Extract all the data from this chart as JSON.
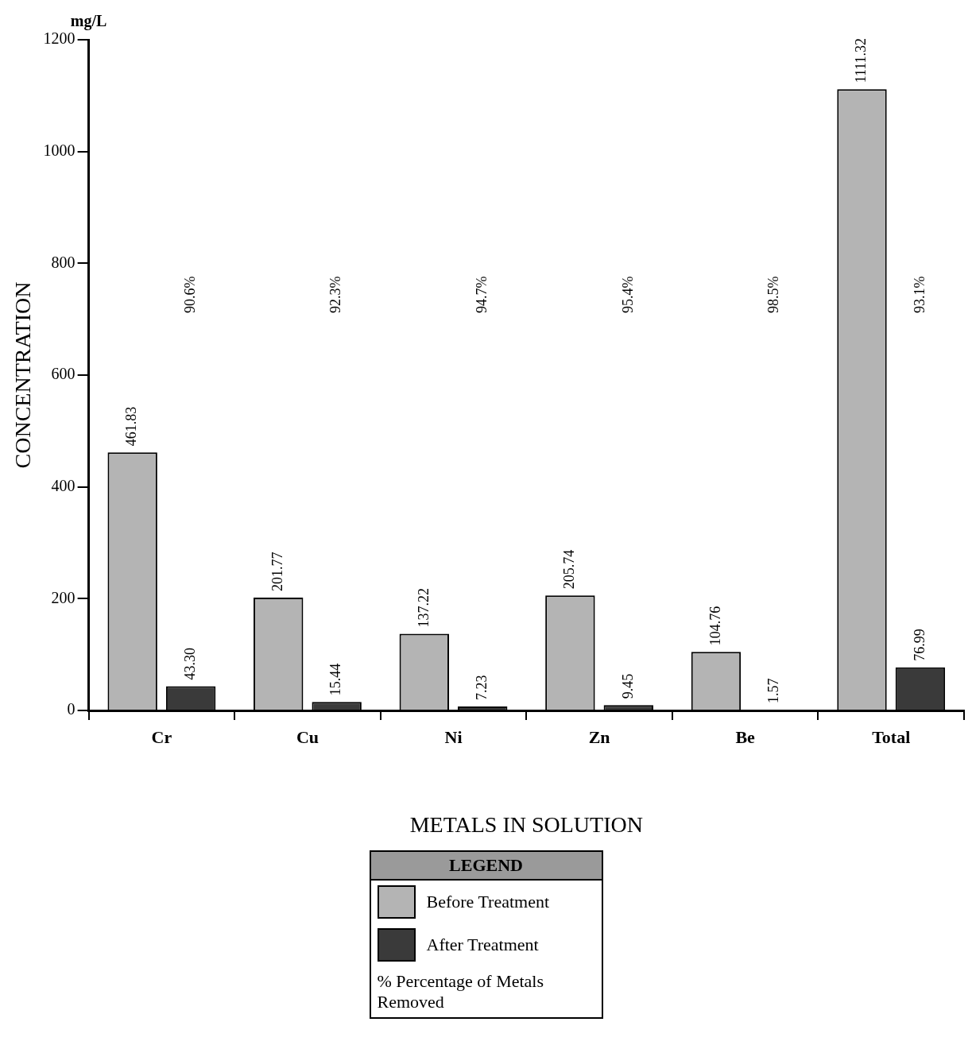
{
  "chart_data": {
    "type": "bar",
    "xlabel": "METALS IN SOLUTION",
    "ylabel": "CONCENTRATION",
    "legend_title": "LEGEND",
    "legend": "bottom",
    "grid": false,
    "categories": [
      "Cr",
      "Cu",
      "Ni",
      "Zn",
      "Be",
      "Total"
    ],
    "series": [
      {
        "name": "Before Treatment",
        "color": "#b4b4b4",
        "values": [
          461.83,
          201.77,
          137.22,
          205.74,
          104.76,
          1111.32
        ],
        "value_labels": [
          "461.83",
          "201.77",
          "137.22",
          "205.74",
          "104.76",
          "1111.32"
        ]
      },
      {
        "name": "After Treatment",
        "color": "#3a3a3a",
        "values": [
          43.3,
          15.44,
          7.23,
          9.45,
          1.57,
          76.99
        ],
        "value_labels": [
          "43.30",
          "15.44",
          "7.23",
          "9.45",
          "1.57",
          "76.99"
        ]
      }
    ],
    "ylim": [
      0,
      1200
    ],
    "yticks": [
      0,
      200,
      400,
      600,
      800,
      1000,
      1200
    ],
    "annotations": [
      "mg/L",
      "% Percentage of Metals Removed",
      "90.6%",
      "92.3%",
      "94.7%",
      "95.4%",
      "98.5%",
      "93.1%"
    ]
  }
}
